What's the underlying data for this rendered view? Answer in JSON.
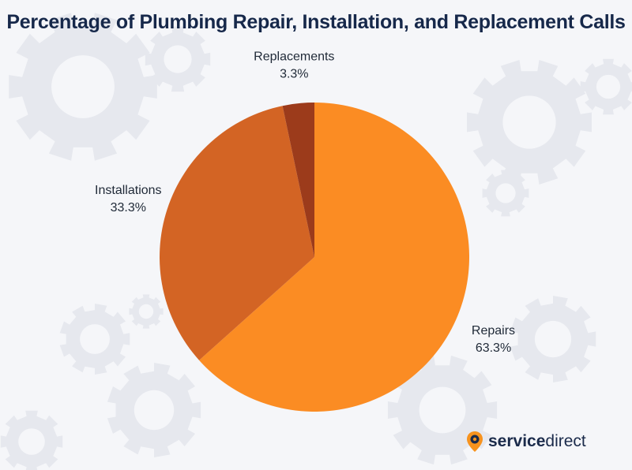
{
  "title": "Percentage of Plumbing Repair, Installation, and Replacement Calls",
  "colors": {
    "background": "#f5f6f9",
    "gear": "#e6e8ee",
    "title": "#16284a",
    "brand_icon": "#f7931e"
  },
  "chart_data": {
    "type": "pie",
    "title": "Percentage of Plumbing Repair, Installation, and Replacement Calls",
    "slices": [
      {
        "label": "Repairs",
        "value": 63.3,
        "value_label": "63.3%",
        "color": "#fb8c23"
      },
      {
        "label": "Installations",
        "value": 33.3,
        "value_label": "33.3%",
        "color": "#d36424"
      },
      {
        "label": "Replacements",
        "value": 3.3,
        "value_label": "3.3%",
        "color": "#9c3b1b"
      }
    ],
    "start": "12 o'clock",
    "direction": "clockwise",
    "legend": "none"
  },
  "brand": {
    "part1": "service",
    "part2": "direct",
    "icon": "location-pin-gear-icon"
  }
}
